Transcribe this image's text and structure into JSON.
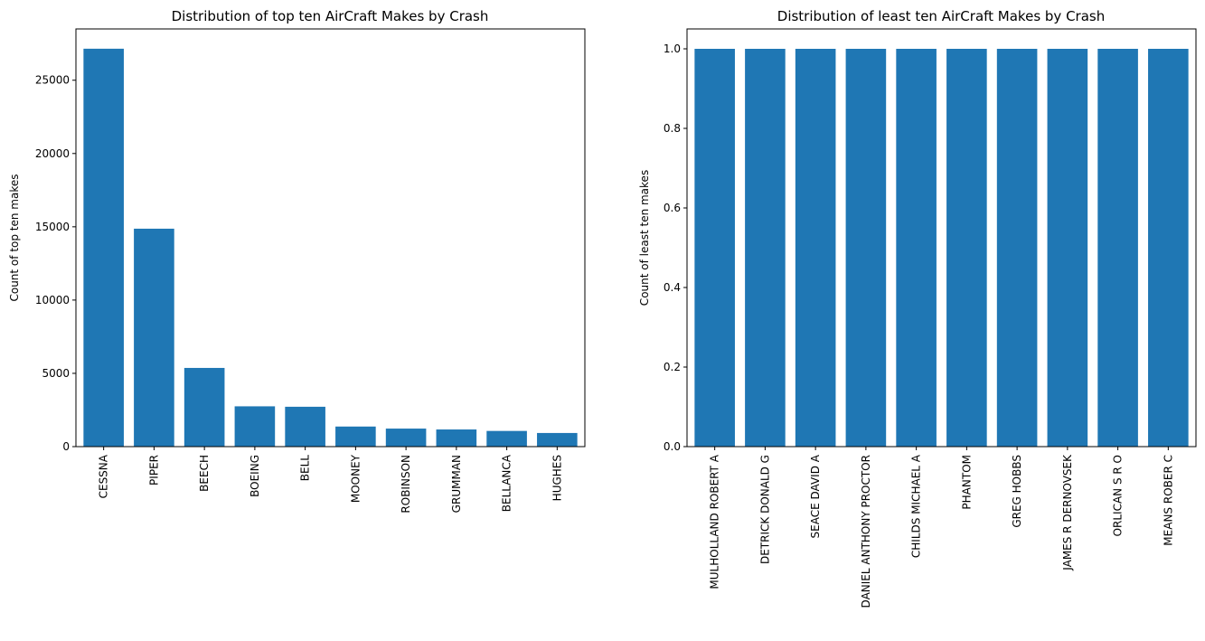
{
  "chart_data": [
    {
      "type": "bar",
      "title": "Distribution of top ten AirCraft Makes by Crash",
      "xlabel": "",
      "ylabel": "Count of top ten makes",
      "categories": [
        "CESSNA",
        "PIPER",
        "BEECH",
        "BOEING",
        "BELL",
        "MOONEY",
        "ROBINSON",
        "GRUMMAN",
        "BELLANCA",
        "HUGHES"
      ],
      "values": [
        27150,
        14870,
        5370,
        2750,
        2720,
        1370,
        1230,
        1170,
        1070,
        930
      ],
      "ylim": [
        0,
        28500
      ],
      "yticks": [
        0,
        5000,
        10000,
        15000,
        20000,
        25000
      ],
      "ytick_labels": [
        "0",
        "5000",
        "10000",
        "15000",
        "20000",
        "25000"
      ],
      "color": "#1f77b4",
      "grid": false
    },
    {
      "type": "bar",
      "title": "Distribution of least ten AirCraft Makes by Crash",
      "xlabel": "",
      "ylabel": "Count of least ten makes",
      "categories": [
        "MULHOLLAND ROBERT A",
        "DETRICK DONALD G",
        "SEACE DAVID A",
        "DANIEL ANTHONY PROCTOR",
        "CHILDS MICHAEL  A",
        "PHANTOM",
        "GREG HOBBS",
        "JAMES R DERNOVSEK",
        "ORLICAN S R O",
        "MEANS ROBER C"
      ],
      "values": [
        1,
        1,
        1,
        1,
        1,
        1,
        1,
        1,
        1,
        1
      ],
      "ylim": [
        0,
        1.05
      ],
      "yticks": [
        0,
        0.2,
        0.4,
        0.6,
        0.8,
        1.0
      ],
      "ytick_labels": [
        "0.0",
        "0.2",
        "0.4",
        "0.6",
        "0.8",
        "1.0"
      ],
      "color": "#1f77b4",
      "grid": false
    }
  ]
}
